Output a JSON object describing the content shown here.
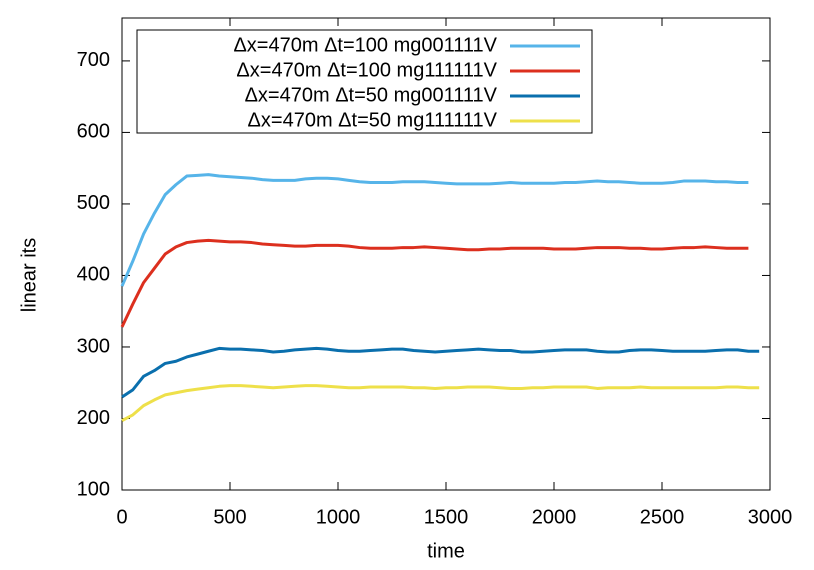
{
  "chart_data": {
    "type": "line",
    "xlabel": "time",
    "ylabel": "linear its",
    "x": [
      0,
      50,
      100,
      150,
      200,
      250,
      300,
      350,
      400,
      450,
      500,
      550,
      600,
      650,
      700,
      750,
      800,
      850,
      900,
      950,
      1000,
      1050,
      1100,
      1150,
      1200,
      1250,
      1300,
      1350,
      1400,
      1450,
      1500,
      1550,
      1600,
      1650,
      1700,
      1750,
      1800,
      1850,
      1900,
      1950,
      2000,
      2050,
      2100,
      2150,
      2200,
      2250,
      2300,
      2350,
      2400,
      2450,
      2500,
      2550,
      2600,
      2650,
      2700,
      2750,
      2800,
      2850,
      2900,
      2950
    ],
    "xlim": [
      0,
      3000
    ],
    "xticks": [
      0,
      500,
      1000,
      1500,
      2000,
      2500,
      3000
    ],
    "ylim": [
      100,
      760
    ],
    "yticks": [
      100,
      200,
      300,
      400,
      500,
      600,
      700
    ],
    "legend": "top-left",
    "series": [
      {
        "name": "Δx=470m Δt=100 mg001111V",
        "color": "#56b4e9",
        "values": [
          385,
          420,
          458,
          487,
          513,
          527,
          539,
          540,
          541,
          539,
          538,
          537,
          536,
          534,
          533,
          533,
          533,
          535,
          536,
          536,
          535,
          533,
          531,
          530,
          530,
          530,
          531,
          531,
          531,
          530,
          529,
          528,
          528,
          528,
          528,
          529,
          530,
          529,
          529,
          529,
          529,
          530,
          530,
          531,
          532,
          531,
          531,
          530,
          529,
          529,
          529,
          530,
          532,
          532,
          532,
          531,
          531,
          530,
          530,
          null
        ]
      },
      {
        "name": "Δx=470m Δt=100 mg111111V",
        "color": "#dc2f1e",
        "values": [
          328,
          360,
          390,
          410,
          430,
          440,
          446,
          448,
          449,
          448,
          447,
          447,
          446,
          444,
          443,
          442,
          441,
          441,
          442,
          442,
          442,
          441,
          439,
          438,
          438,
          438,
          439,
          439,
          440,
          439,
          438,
          437,
          436,
          436,
          437,
          437,
          438,
          438,
          438,
          438,
          437,
          437,
          437,
          438,
          439,
          439,
          439,
          438,
          438,
          437,
          437,
          438,
          439,
          439,
          440,
          439,
          438,
          438,
          438,
          null
        ]
      },
      {
        "name": "Δx=470m Δt=50 mg001111V",
        "color": "#0a6fad",
        "values": [
          230,
          240,
          259,
          267,
          277,
          280,
          286,
          290,
          294,
          298,
          297,
          297,
          296,
          295,
          293,
          294,
          296,
          297,
          298,
          297,
          295,
          294,
          294,
          295,
          296,
          297,
          297,
          295,
          294,
          293,
          294,
          295,
          296,
          297,
          296,
          295,
          295,
          293,
          293,
          294,
          295,
          296,
          296,
          296,
          294,
          293,
          293,
          295,
          296,
          296,
          295,
          294,
          294,
          294,
          294,
          295,
          296,
          296,
          294,
          294
        ]
      },
      {
        "name": "Δx=470m Δt=50 mg111111V",
        "color": "#eee04a",
        "values": [
          197,
          205,
          218,
          226,
          233,
          236,
          239,
          241,
          243,
          245,
          246,
          246,
          245,
          244,
          243,
          244,
          245,
          246,
          246,
          245,
          244,
          243,
          243,
          244,
          244,
          244,
          244,
          243,
          243,
          242,
          243,
          243,
          244,
          244,
          244,
          243,
          242,
          242,
          243,
          243,
          244,
          244,
          244,
          244,
          242,
          243,
          243,
          243,
          244,
          243,
          243,
          243,
          243,
          243,
          243,
          243,
          244,
          244,
          243,
          243
        ]
      }
    ]
  }
}
